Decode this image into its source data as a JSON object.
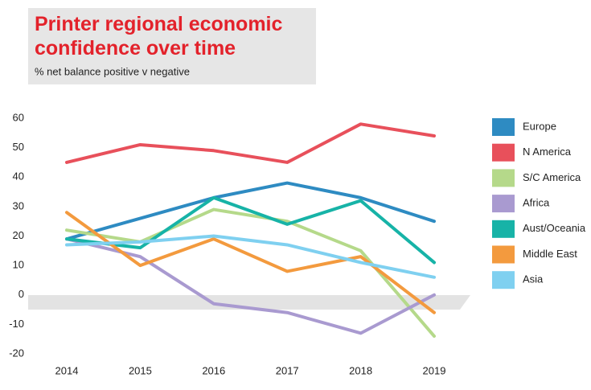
{
  "chart_data": {
    "type": "line",
    "title": "Printer regional economic confidence over time",
    "subtitle": "% net balance positive v negative",
    "categories": [
      "2014",
      "2015",
      "2016",
      "2017",
      "2018",
      "2019"
    ],
    "ylim": [
      -20,
      60
    ],
    "yticks": [
      -20,
      -10,
      0,
      10,
      20,
      30,
      40,
      50,
      60
    ],
    "series": [
      {
        "name": "Europe",
        "color": "#2e8bc2",
        "values": [
          19,
          26,
          33,
          38,
          33,
          25
        ]
      },
      {
        "name": "N America",
        "color": "#e8505b",
        "values": [
          45,
          51,
          49,
          45,
          58,
          54
        ]
      },
      {
        "name": "S/C America",
        "color": "#b5d98a",
        "values": [
          22,
          18,
          29,
          25,
          15,
          -14
        ]
      },
      {
        "name": "Africa",
        "color": "#a99ad0",
        "values": [
          19,
          13,
          -3,
          -6,
          -13,
          0
        ]
      },
      {
        "name": "Aust/Oceania",
        "color": "#17b3a7",
        "values": [
          19,
          16,
          33,
          24,
          32,
          11
        ]
      },
      {
        "name": "Middle East",
        "color": "#f39a3e",
        "values": [
          28,
          10,
          19,
          8,
          13,
          -6
        ]
      },
      {
        "name": "Asia",
        "color": "#7fd0f0",
        "values": [
          17,
          18,
          20,
          17,
          11,
          6
        ]
      }
    ]
  }
}
